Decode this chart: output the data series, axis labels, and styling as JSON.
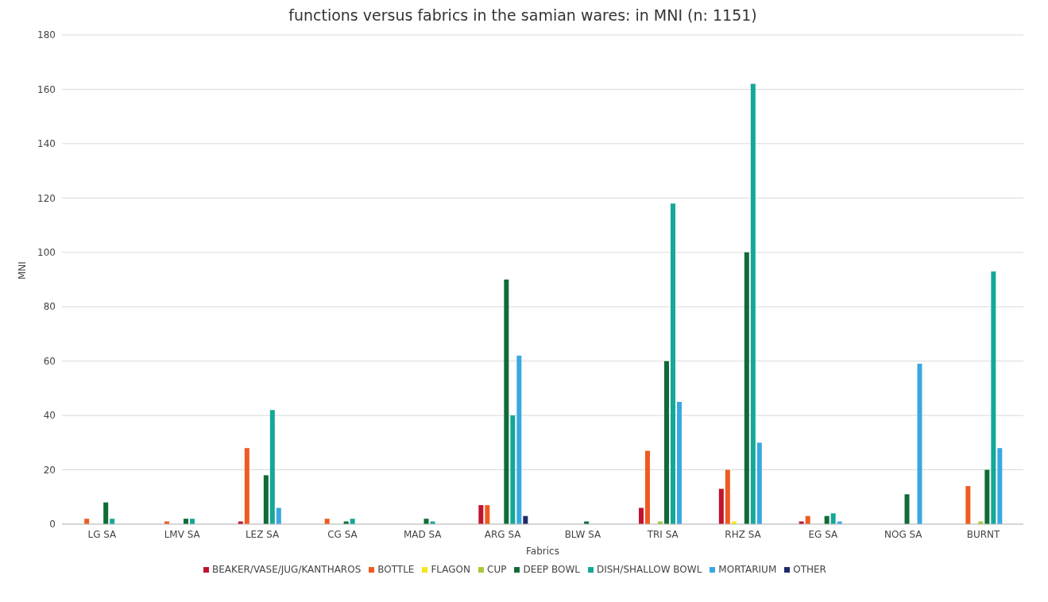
{
  "chart_data": {
    "type": "bar",
    "title": "functions versus fabrics in the samian wares: in MNI (n: 1151)",
    "xlabel": "Fabrics",
    "ylabel": "MNI",
    "categories": [
      "LG SA",
      "LMV SA",
      "LEZ SA",
      "CG SA",
      "MAD SA",
      "ARG SA",
      "BLW SA",
      "TRI SA",
      "RHZ SA",
      "EG SA",
      "NOG SA",
      "BURNT"
    ],
    "series": [
      {
        "name": "BEAKER/VASE/JUG/KANTHAROS",
        "color": "#c0142c",
        "values": [
          0,
          0,
          1,
          0,
          0,
          7,
          0,
          6,
          13,
          1,
          0,
          0
        ]
      },
      {
        "name": "BOTTLE",
        "color": "#f05a22",
        "values": [
          2,
          1,
          28,
          2,
          0,
          7,
          0,
          27,
          20,
          3,
          0,
          14
        ]
      },
      {
        "name": "FLAGON",
        "color": "#f5e61a",
        "values": [
          0,
          0,
          0,
          0,
          0,
          0,
          0,
          0,
          1,
          0,
          0,
          0
        ]
      },
      {
        "name": "CUP",
        "color": "#a8c83c",
        "values": [
          0,
          0,
          0,
          0,
          0,
          0,
          0,
          1,
          0,
          0,
          0,
          1
        ]
      },
      {
        "name": "DEEP BOWL",
        "color": "#106b36",
        "values": [
          8,
          2,
          18,
          1,
          2,
          90,
          1,
          60,
          100,
          3,
          11,
          20
        ]
      },
      {
        "name": "DISH/SHALLOW BOWL",
        "color": "#14a898",
        "values": [
          2,
          2,
          42,
          2,
          1,
          40,
          0,
          118,
          162,
          4,
          0,
          93
        ]
      },
      {
        "name": "MORTARIUM",
        "color": "#3aa8e0",
        "values": [
          0,
          0,
          6,
          0,
          0,
          62,
          0,
          45,
          30,
          1,
          59,
          28
        ]
      },
      {
        "name": "OTHER",
        "color": "#1f2a6b",
        "values": [
          0,
          0,
          0,
          0,
          0,
          3,
          0,
          0,
          0,
          0,
          0,
          0
        ]
      }
    ],
    "ylim": [
      0,
      180
    ],
    "yticks": [
      0,
      20,
      40,
      60,
      80,
      100,
      120,
      140,
      160,
      180
    ],
    "grid": "y",
    "legend": "bottom"
  }
}
